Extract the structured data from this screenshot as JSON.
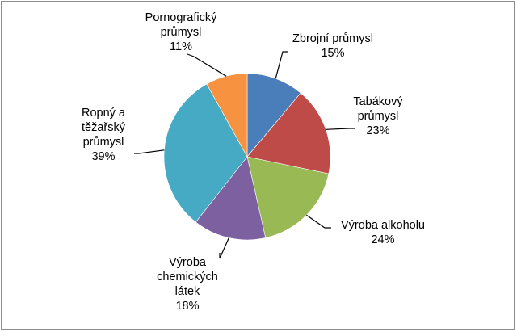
{
  "chart_data": {
    "type": "pie",
    "title": "",
    "slices": [
      {
        "name": "Zbrojní průmysl",
        "label_lines": [
          "Zbrojní průmysl"
        ],
        "percent_label": "15%",
        "value": 11,
        "color": "#4a7ebb"
      },
      {
        "name": "Tabákový průmysl",
        "label_lines": [
          "Tabákový",
          "průmysl"
        ],
        "percent_label": "23%",
        "value": 17,
        "color": "#be4b48"
      },
      {
        "name": "Výroba alkoholu",
        "label_lines": [
          "Výroba alkoholu"
        ],
        "percent_label": "24%",
        "value": 18,
        "color": "#98b954"
      },
      {
        "name": "Výroba chemických látek",
        "label_lines": [
          "Výroba",
          "chemických",
          "látek"
        ],
        "percent_label": "18%",
        "value": 14,
        "color": "#7d60a0"
      },
      {
        "name": "Ropný a těžařský průmysl",
        "label_lines": [
          "Ropný a",
          "těžařský",
          "průmysl"
        ],
        "percent_label": "39%",
        "value": 31,
        "color": "#46aac5"
      },
      {
        "name": "Pornografický průmysl",
        "label_lines": [
          "Pornografický",
          "průmysl"
        ],
        "percent_label": "11%",
        "value": 8,
        "color": "#f69240"
      }
    ],
    "start_angle_deg": 0,
    "direction": "clockwise",
    "legend": "none",
    "leader_lines": true
  }
}
